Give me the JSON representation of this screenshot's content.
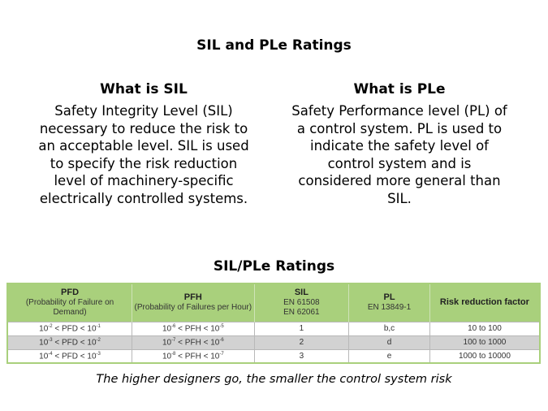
{
  "title": "SIL and PLe Ratings",
  "sil": {
    "heading": "What is SIL",
    "text": "Safety Integrity Level (SIL) necessary to reduce the risk to an acceptable level. SIL is used to specify the risk reduction level of machinery-specific electrically controlled systems."
  },
  "ple": {
    "heading": "What is PLe",
    "text": "Safety Performance level (PL) of a control system. PL is used to indicate the safety level of control system and is considered more general than SIL."
  },
  "table_title": "SIL/PLe Ratings",
  "table": {
    "headers": [
      {
        "main": "PFD",
        "sub": "(Probability of Failure on Demand)"
      },
      {
        "main": "PFH",
        "sub": "(Probability of Failures per Hour)"
      },
      {
        "main": "SIL",
        "sub": "EN 61508",
        "sub2": "EN 62061"
      },
      {
        "main": "PL",
        "sub": "EN 13849-1"
      },
      {
        "main": "Risk reduction factor"
      }
    ],
    "rows": [
      {
        "pfd": [
          "10",
          "-2",
          " < PFD < 10",
          "-1"
        ],
        "pfh": [
          "10",
          "-6",
          " < PFH < 10",
          "-5"
        ],
        "sil": "1",
        "pl": "b,c",
        "rrf": "10 to 100"
      },
      {
        "pfd": [
          "10",
          "-3",
          " < PFD < 10",
          "-2"
        ],
        "pfh": [
          "10",
          "-7",
          " < PFH < 10",
          "-6"
        ],
        "sil": "2",
        "pl": "d",
        "rrf": "100 to 1000"
      },
      {
        "pfd": [
          "10",
          "-4",
          " < PFD < 10",
          "-3"
        ],
        "pfh": [
          "10",
          "-8",
          " < PFH < 10",
          "-7"
        ],
        "sil": "3",
        "pl": "e",
        "rrf": "1000 to 10000"
      }
    ]
  },
  "note": "The higher designers go, the smaller the control system risk"
}
